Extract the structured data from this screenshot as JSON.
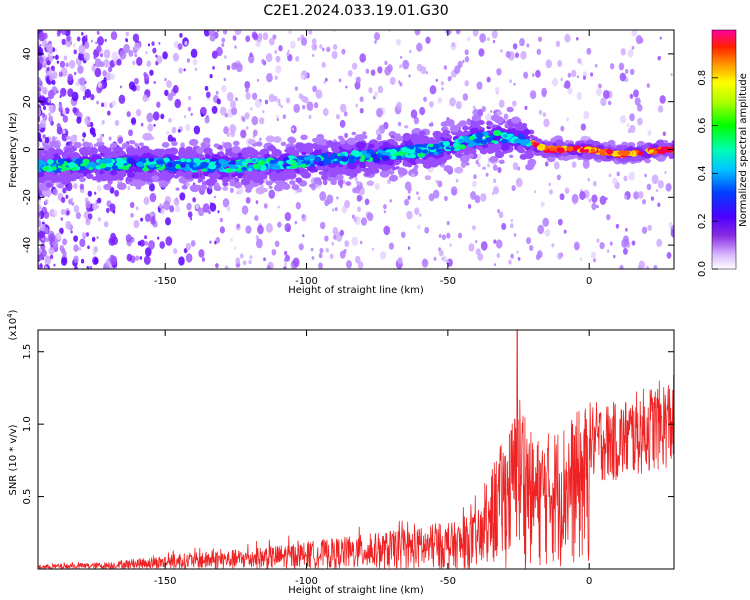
{
  "title": "C2E1.2024.033.19.01.G30",
  "chart_data": [
    {
      "type": "heatmap",
      "xlabel": "Height of straight line (km)",
      "ylabel": "Frequency (Hz)",
      "xlim": [
        -195,
        30
      ],
      "ylim": [
        -50,
        50
      ],
      "xticks": [
        -150,
        -100,
        -50,
        0
      ],
      "yticks": [
        -40,
        -20,
        0,
        20,
        40
      ],
      "colorbar": {
        "label": "Normalized spectral amplitude",
        "range": [
          0,
          1
        ],
        "ticks": [
          "0.0",
          "0.2",
          "0.4",
          "0.6",
          "0.8"
        ]
      },
      "ridge": {
        "x": [
          -195,
          -170,
          -150,
          -130,
          -110,
          -90,
          -70,
          -55,
          -45,
          -35,
          -25,
          -15,
          0,
          10,
          28
        ],
        "y": [
          -7,
          -6,
          -6,
          -7,
          -6,
          -4,
          -2,
          0,
          3,
          5,
          5,
          0,
          0,
          -2,
          0
        ]
      }
    },
    {
      "type": "line",
      "xlabel": "Height of straight line (km)",
      "ylabel": "SNR (10 * v/v)",
      "multiplier": "(x10",
      "multiplier_exp": "4",
      "multiplier_close": ")",
      "xlim": [
        -195,
        30
      ],
      "ylim": [
        0,
        1.65
      ],
      "xticks": [
        -150,
        -100,
        -50,
        0
      ],
      "yticks": [
        "0.5",
        "1.0",
        "1.5"
      ],
      "color": "#ee2222",
      "envelope": {
        "x": [
          -195,
          -170,
          -150,
          -120,
          -100,
          -80,
          -60,
          -45,
          -38,
          -33,
          -28,
          -24,
          -20,
          -10,
          0,
          10,
          20,
          30
        ],
        "y": [
          0.03,
          0.05,
          0.1,
          0.15,
          0.2,
          0.25,
          0.3,
          0.35,
          0.45,
          0.75,
          0.95,
          1.2,
          0.85,
          0.95,
          1.1,
          1.1,
          1.2,
          1.28
        ]
      },
      "peak": {
        "x": -25.5,
        "y": 1.65
      }
    }
  ]
}
